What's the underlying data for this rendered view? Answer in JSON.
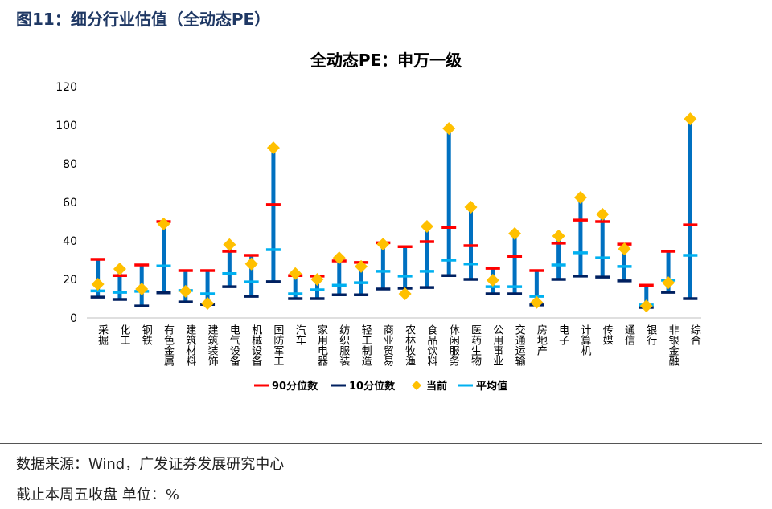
{
  "figure_title": "图11：细分行业估值（全动态PE）",
  "source": "数据来源：Wind，广发证券发展研究中心",
  "note": "截止本周五收盘 单位：%",
  "colors": {
    "p90": "#ff0000",
    "p10": "#002060",
    "current": "#ffc000",
    "mean": "#00b0f0",
    "bar": "#0070c0"
  },
  "chart_data": {
    "type": "range-bar",
    "title": "全动态PE：申万一级",
    "ylim": [
      0,
      120
    ],
    "yticks": [
      0,
      20,
      40,
      60,
      80,
      100,
      120
    ],
    "legend_position": "bottom",
    "categories": [
      "采掘",
      "化工",
      "钢铁",
      "有色金属",
      "建筑材料",
      "建筑装饰",
      "电气设备",
      "机械设备",
      "国防军工",
      "汽车",
      "家用电器",
      "纺织服装",
      "轻工制造",
      "商业贸易",
      "农林牧渔",
      "食品饮料",
      "休闲服务",
      "医药生物",
      "公用事业",
      "交通运输",
      "房地产",
      "电子",
      "计算机",
      "传媒",
      "通信",
      "银行",
      "非银金融",
      "综合"
    ],
    "series": [
      {
        "name": "90分位数",
        "key": "p90",
        "values": [
          30.4,
          22,
          27.5,
          50,
          24.6,
          24.6,
          34.6,
          32.5,
          58.8,
          22,
          21.7,
          29.6,
          28.8,
          39,
          37,
          39.6,
          47,
          37.5,
          25.8,
          32,
          24.6,
          38.8,
          50.8,
          50,
          38.3,
          17,
          34.6,
          48.3
        ]
      },
      {
        "name": "10分位数",
        "key": "p10",
        "values": [
          10.8,
          9.6,
          6.2,
          13,
          8.3,
          7,
          16.2,
          11.2,
          18.8,
          10,
          10,
          12,
          12,
          15,
          15.4,
          15.8,
          22,
          20,
          12.5,
          12.5,
          6.7,
          20,
          21.7,
          21.2,
          19.2,
          5.4,
          13.3,
          10
        ]
      },
      {
        "name": "当前",
        "key": "current",
        "values": [
          17.5,
          25.4,
          15,
          48.8,
          13.8,
          7.5,
          38,
          28,
          88.3,
          23,
          20,
          31.2,
          26.7,
          38.3,
          12.5,
          47.5,
          98.3,
          57.5,
          19.6,
          43.8,
          8,
          42.5,
          62.5,
          53.8,
          35.8,
          6.2,
          18.3,
          103.3
        ]
      },
      {
        "name": "平均值",
        "key": "mean",
        "values": [
          14,
          13.3,
          13.8,
          27,
          14.2,
          12.5,
          23,
          18.7,
          35.4,
          12.5,
          14.6,
          17,
          18.3,
          24.2,
          21.7,
          24.2,
          30,
          28,
          16.2,
          16.2,
          11.2,
          27.5,
          33.8,
          31.2,
          26.7,
          6.7,
          19.6,
          32.5
        ]
      }
    ]
  }
}
